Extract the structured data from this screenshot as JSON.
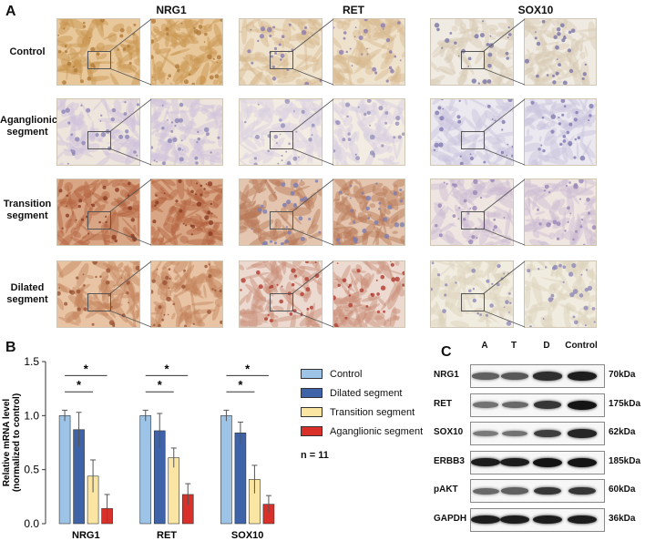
{
  "panel_a": {
    "letter": "A",
    "columns": [
      "NRG1",
      "RET",
      "SOX10"
    ],
    "rows": [
      {
        "label_lines": [
          "Control"
        ]
      },
      {
        "label_lines": [
          "Aganglionic",
          "segment"
        ]
      },
      {
        "label_lines": [
          "Transition",
          "segment"
        ]
      },
      {
        "label_lines": [
          "Dilated",
          "segment"
        ]
      }
    ]
  },
  "panel_b": {
    "letter": "B",
    "n_label": "n = 11",
    "significance_marker": "*"
  },
  "panel_c": {
    "letter": "C",
    "lanes": [
      "A",
      "T",
      "D",
      "Control"
    ],
    "proteins": [
      {
        "name": "NRG1",
        "kda": "70kDa",
        "intensity": [
          0.55,
          0.6,
          0.85,
          0.95
        ]
      },
      {
        "name": "RET",
        "kda": "175kDa",
        "intensity": [
          0.45,
          0.5,
          0.8,
          1.0
        ]
      },
      {
        "name": "SOX10",
        "kda": "62kDa",
        "intensity": [
          0.4,
          0.45,
          0.75,
          0.9
        ]
      },
      {
        "name": "ERBB3",
        "kda": "185kDa",
        "intensity": [
          0.95,
          0.95,
          1.0,
          1.0
        ]
      },
      {
        "name": "pAKT",
        "kda": "60kDa",
        "intensity": [
          0.5,
          0.55,
          0.8,
          0.8
        ]
      },
      {
        "name": "GAPDH",
        "kda": "36kDa",
        "intensity": [
          0.95,
          0.95,
          0.95,
          0.95
        ]
      }
    ]
  },
  "colors": {
    "control": "#9dc3e6",
    "dilated": "#3e63a8",
    "transition": "#fbe5a3",
    "aganglionic": "#d9302a"
  },
  "chart_data": {
    "type": "bar",
    "categories": [
      "NRG1",
      "RET",
      "SOX10"
    ],
    "ylabel": "Relative mRNA level\n(normalized to control)",
    "ylim": [
      0,
      1.5
    ],
    "yticks": [
      "0.0",
      "0.5",
      "1.0",
      "1.5"
    ],
    "legend_position": "right",
    "series": [
      {
        "name": "Control",
        "values": [
          1.0,
          1.0,
          1.0
        ],
        "errors": [
          0.05,
          0.05,
          0.05
        ]
      },
      {
        "name": "Dilated segment",
        "values": [
          0.87,
          0.86,
          0.84
        ],
        "errors": [
          0.16,
          0.16,
          0.1
        ]
      },
      {
        "name": "Transition segment",
        "values": [
          0.44,
          0.61,
          0.41
        ],
        "errors": [
          0.15,
          0.09,
          0.13
        ]
      },
      {
        "name": "Aganglionic segment",
        "values": [
          0.14,
          0.27,
          0.18
        ],
        "errors": [
          0.13,
          0.1,
          0.08
        ]
      }
    ],
    "significance": [
      {
        "category": "NRG1",
        "from_series": 0,
        "to_series": 3,
        "label": "*"
      },
      {
        "category": "NRG1",
        "from_series": 0,
        "to_series": 2,
        "label": "*"
      },
      {
        "category": "RET",
        "from_series": 0,
        "to_series": 3,
        "label": "*"
      },
      {
        "category": "RET",
        "from_series": 0,
        "to_series": 2,
        "label": "*"
      },
      {
        "category": "SOX10",
        "from_series": 0,
        "to_series": 3,
        "label": "*"
      },
      {
        "category": "SOX10",
        "from_series": 0,
        "to_series": 2,
        "label": "*"
      }
    ]
  }
}
